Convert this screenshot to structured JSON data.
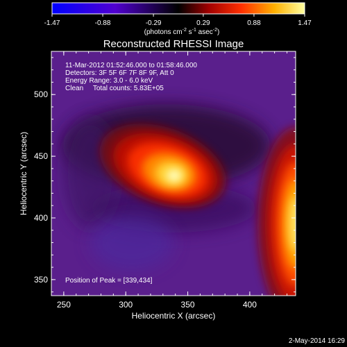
{
  "chart_data": {
    "type": "heatmap",
    "title": "Reconstructed RHESSI Image",
    "xlabel": "Heliocentric X (arcsec)",
    "ylabel": "Heliocentric Y (arcsec)",
    "x_ticks": [
      250,
      300,
      350,
      400
    ],
    "y_ticks": [
      350,
      400,
      450,
      500
    ],
    "xlim": [
      240,
      437
    ],
    "ylim": [
      337,
      535
    ],
    "colorbar": {
      "ticks": [
        "-1.47",
        "-0.88",
        "-0.29",
        "0.29",
        "0.88",
        "1.47"
      ],
      "range": [
        -1.47,
        1.47
      ],
      "unit_text": "(photons cm",
      "unit_exp1": "-2",
      "unit_mid": " s",
      "unit_exp2": "-1",
      "unit_mid2": " asec",
      "unit_exp3": "-2",
      "unit_end": ")"
    },
    "annotations": {
      "line1": "11-Mar-2012 01:52:46.000 to 01:58:46.000",
      "line2": "Detectors: 3F 5F 6F 7F 8F 9F, Att 0",
      "line3": "Energy Range: 3.0 - 6.0 keV",
      "line4": "Clean     Total counts: 5.83E+05",
      "peak": "Position of Peak = [339,434]"
    },
    "sources": [
      {
        "x": 339,
        "y": 434,
        "peak": 1.47
      },
      {
        "x": 437,
        "y": 395,
        "peak": 1.3
      }
    ],
    "footer_date": "2-May-2014 16:29"
  }
}
